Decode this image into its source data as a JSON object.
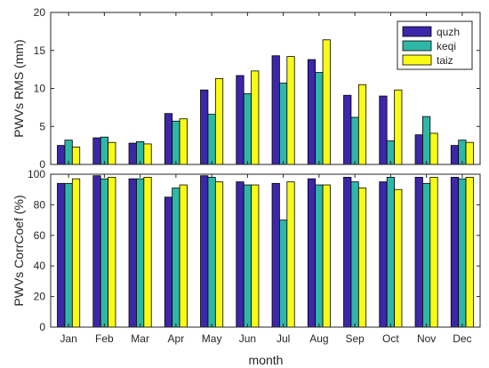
{
  "colors": {
    "quzh": "#3d26a8",
    "keqi": "#2eb7a8",
    "taiz": "#f9fb15",
    "axis": "#262626"
  },
  "chart_data": [
    {
      "type": "bar",
      "ylabel": "PWVs RMS (mm)",
      "xlabel": "",
      "ylim": [
        0,
        20
      ],
      "yticks": [
        0,
        5,
        10,
        15,
        20
      ],
      "legend_position": "top-right",
      "categories": [
        "Jan",
        "Feb",
        "Mar",
        "Apr",
        "May",
        "Jun",
        "Jul",
        "Aug",
        "Sep",
        "Oct",
        "Nov",
        "Dec"
      ],
      "series": [
        {
          "name": "quzh",
          "values": [
            2.5,
            3.5,
            2.8,
            6.7,
            9.8,
            11.7,
            14.3,
            13.8,
            9.1,
            9.0,
            3.9,
            2.5
          ]
        },
        {
          "name": "keqi",
          "values": [
            3.2,
            3.6,
            3.0,
            5.7,
            6.6,
            9.3,
            10.7,
            12.1,
            6.2,
            3.1,
            6.3,
            3.2
          ]
        },
        {
          "name": "taiz",
          "values": [
            2.3,
            2.9,
            2.7,
            6.0,
            11.3,
            12.3,
            14.2,
            16.4,
            10.5,
            9.8,
            4.1,
            2.9
          ]
        }
      ]
    },
    {
      "type": "bar",
      "ylabel": "PWVs CorrCoef (%)",
      "xlabel": "month",
      "ylim": [
        0,
        100
      ],
      "yticks": [
        0,
        20,
        40,
        60,
        80,
        100
      ],
      "categories": [
        "Jan",
        "Feb",
        "Mar",
        "Apr",
        "May",
        "Jun",
        "Jul",
        "Aug",
        "Sep",
        "Oct",
        "Nov",
        "Dec"
      ],
      "series": [
        {
          "name": "quzh",
          "values": [
            94,
            99,
            97,
            85,
            99,
            95,
            94,
            97,
            98,
            95,
            98,
            98
          ]
        },
        {
          "name": "keqi",
          "values": [
            94,
            97,
            97,
            91,
            98,
            93,
            70,
            93,
            95,
            98,
            94,
            97
          ]
        },
        {
          "name": "taiz",
          "values": [
            97,
            98,
            98,
            93,
            95,
            93,
            95,
            93,
            91,
            90,
            98,
            98
          ]
        }
      ]
    }
  ]
}
